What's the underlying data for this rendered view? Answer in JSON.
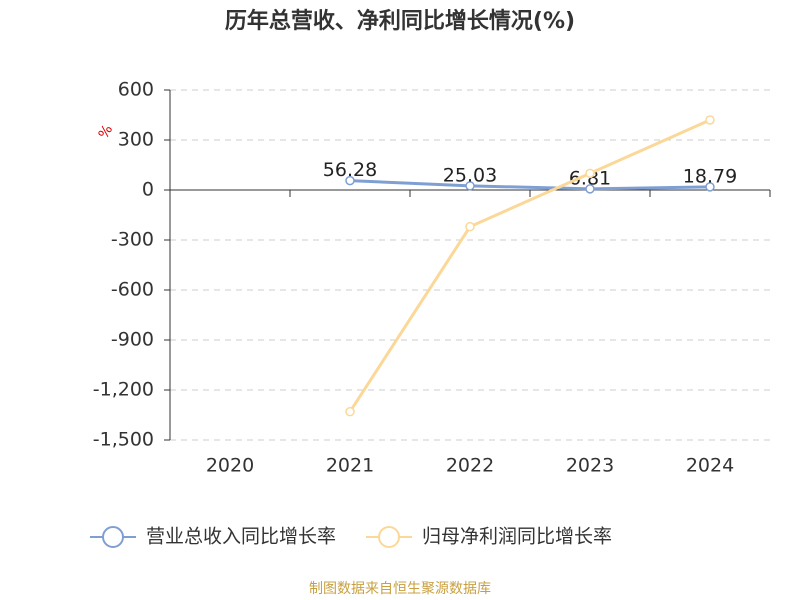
{
  "chart_data": {
    "type": "line",
    "title": "历年总营收、净利同比增长情况(%)",
    "y_label": "%",
    "categories": [
      "2020",
      "2021",
      "2022",
      "2023",
      "2024"
    ],
    "series": [
      {
        "name": "营业总收入同比增长率",
        "color": "#7f9fd3",
        "values": [
          null,
          56.28,
          25.03,
          6.81,
          18.79
        ],
        "show_labels": true
      },
      {
        "name": "归母净利润同比增长率",
        "color": "#fbd898",
        "values": [
          null,
          -1330,
          -220,
          100,
          420
        ],
        "show_labels": false
      }
    ],
    "ylim": [
      -1500,
      600
    ],
    "yticks": [
      {
        "value": -1500,
        "label": "-1,500"
      },
      {
        "value": -1200,
        "label": "-1,200"
      },
      -900,
      -600,
      -300,
      0,
      300,
      600
    ],
    "grid": true,
    "legend": "bottom",
    "source": "制图数据来自恒生聚源数据库"
  }
}
